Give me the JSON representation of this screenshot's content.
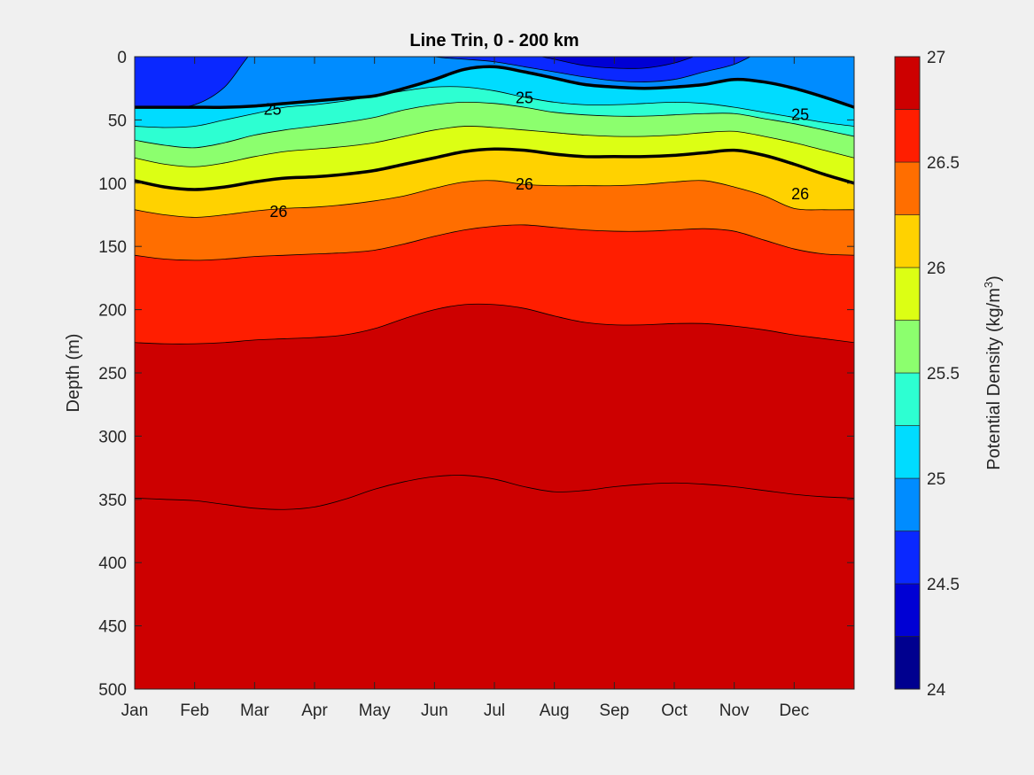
{
  "chart_data": {
    "type": "contour",
    "title": "Line Trin, 0 - 200 km",
    "xlabel": "",
    "ylabel": "Depth (m)",
    "colorbar_label": "Potential Density (kg/m",
    "colorbar_label_sup": "3",
    "colorbar_label_end": ")",
    "months": [
      "Jan",
      "Feb",
      "Mar",
      "Apr",
      "May",
      "Jun",
      "Jul",
      "Aug",
      "Sep",
      "Oct",
      "Nov",
      "Dec"
    ],
    "x_range": [
      0,
      12
    ],
    "ylim": [
      0,
      500
    ],
    "y_reversed": true,
    "y_ticks": [
      "0",
      "50",
      "100",
      "150",
      "200",
      "250",
      "300",
      "350",
      "400",
      "450",
      "500"
    ],
    "colorbar_ticks": [
      "24",
      "24.5",
      "25",
      "25.5",
      "26",
      "26.5",
      "27"
    ],
    "colorbar_range": [
      24,
      27
    ],
    "colormap": "jet",
    "levels": [
      24.0,
      24.25,
      24.5,
      24.75,
      25.0,
      25.25,
      25.5,
      25.75,
      26.0,
      26.25,
      26.5,
      26.75,
      27.0
    ],
    "level_colors": [
      "#00008f",
      "#0000d4",
      "#0a28ff",
      "#008cff",
      "#00dcff",
      "#2dffd2",
      "#8cff6e",
      "#dcff14",
      "#ffd200",
      "#ff6e00",
      "#ff1e00",
      "#cd0000"
    ],
    "x_samples": [
      0,
      0.5,
      1,
      1.5,
      2,
      2.5,
      3,
      3.5,
      4,
      4.5,
      5,
      5.5,
      6,
      6.5,
      7,
      7.5,
      8,
      8.5,
      9,
      9.5,
      10,
      10.5,
      11,
      11.5,
      12
    ],
    "isopycnal_depths": [
      {
        "level": 24.25,
        "depths": [
          -10,
          -10,
          -10,
          -10,
          -10,
          -10,
          -10,
          -10,
          -10,
          -10,
          -10,
          -10,
          -10,
          -10,
          -10,
          -10,
          -10,
          -10,
          -10,
          -10,
          -10,
          -10,
          -10,
          -10,
          -10
        ]
      },
      {
        "level": 24.5,
        "depths": [
          -10,
          -10,
          -10,
          -10,
          -10,
          -10,
          -10,
          -10,
          -10,
          -10,
          -10,
          -10,
          -10,
          -3,
          2,
          7,
          9,
          9,
          5,
          -3,
          -10,
          -10,
          -10,
          -10,
          -10
        ]
      },
      {
        "level": 24.75,
        "depths": [
          40,
          40,
          38,
          24,
          -5,
          -10,
          -10,
          -10,
          -10,
          -6,
          0,
          2,
          4,
          8,
          12,
          16,
          19,
          20,
          18,
          12,
          6,
          -5,
          -10,
          -10,
          -10
        ]
      },
      {
        "level": 25.0,
        "depths": [
          40,
          40,
          40,
          40,
          39,
          37,
          35,
          33,
          31,
          25,
          18,
          10,
          8,
          12,
          17,
          22,
          24,
          25,
          24,
          22,
          18,
          20,
          25,
          32,
          40
        ]
      },
      {
        "level": 25.25,
        "depths": [
          55,
          56,
          55,
          50,
          45,
          40,
          38,
          35,
          31,
          27,
          24,
          24,
          27,
          32,
          36,
          38,
          38,
          37,
          36,
          37,
          40,
          44,
          48,
          52,
          55
        ]
      },
      {
        "level": 25.5,
        "depths": [
          66,
          70,
          72,
          68,
          62,
          58,
          55,
          52,
          48,
          42,
          38,
          36,
          37,
          40,
          44,
          46,
          47,
          47,
          46,
          45,
          45,
          49,
          53,
          58,
          63
        ]
      },
      {
        "level": 25.75,
        "depths": [
          80,
          85,
          87,
          84,
          79,
          75,
          73,
          71,
          68,
          63,
          58,
          55,
          56,
          58,
          60,
          62,
          63,
          63,
          62,
          60,
          59,
          63,
          68,
          74,
          80
        ]
      },
      {
        "level": 26.0,
        "depths": [
          98,
          103,
          105,
          103,
          99,
          96,
          95,
          93,
          90,
          85,
          80,
          75,
          73,
          74,
          77,
          79,
          79,
          79,
          78,
          76,
          74,
          78,
          85,
          93,
          100
        ]
      },
      {
        "level": 26.25,
        "depths": [
          121,
          125,
          127,
          125,
          122,
          120,
          119,
          117,
          114,
          110,
          104,
          99,
          98,
          101,
          102,
          102,
          102,
          101,
          99,
          98,
          103,
          110,
          120,
          121,
          121
        ]
      },
      {
        "level": 26.5,
        "depths": [
          157,
          160,
          161,
          160,
          158,
          157,
          156,
          155,
          153,
          148,
          142,
          137,
          134,
          133,
          135,
          137,
          138,
          138,
          137,
          136,
          138,
          145,
          152,
          156,
          157
        ]
      },
      {
        "level": 26.75,
        "depths": [
          226,
          227,
          227,
          226,
          224,
          223,
          222,
          220,
          215,
          207,
          200,
          196,
          196,
          199,
          205,
          210,
          212,
          212,
          211,
          211,
          213,
          216,
          220,
          223,
          226
        ]
      },
      {
        "level": 27.0,
        "depths": [
          349,
          350,
          351,
          354,
          357,
          358,
          356,
          350,
          342,
          336,
          332,
          331,
          334,
          340,
          344,
          343,
          340,
          338,
          337,
          338,
          340,
          343,
          346,
          348,
          349
        ]
      }
    ],
    "contour_labels": [
      {
        "text": "25",
        "x": 2.3,
        "y": 41
      },
      {
        "text": "25",
        "x": 6.5,
        "y": 32
      },
      {
        "text": "25",
        "x": 11.1,
        "y": 45
      },
      {
        "text": "26",
        "x": 2.4,
        "y": 122
      },
      {
        "text": "26",
        "x": 6.5,
        "y": 100
      },
      {
        "text": "26",
        "x": 11.1,
        "y": 108
      }
    ]
  }
}
